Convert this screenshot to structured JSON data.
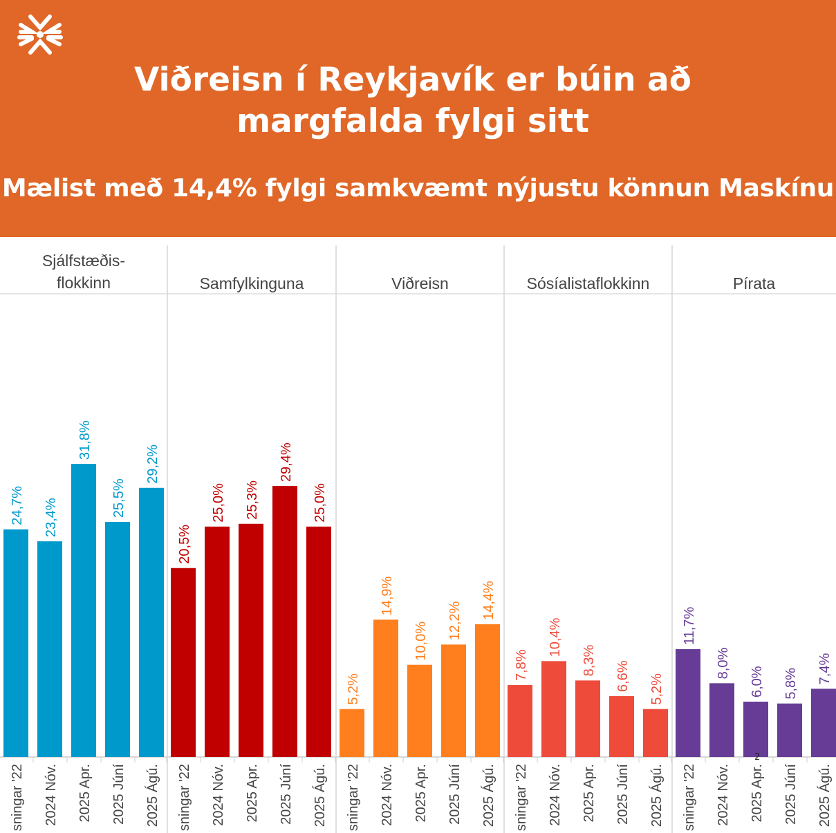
{
  "header": {
    "title_line1": "Viðreisn í Reykjavík er búin að",
    "title_line2": "margfalda fylgi sitt",
    "subtitle": "Mælist með 14,4% fylgi samkvæmt nýjustu könnun Maskínu",
    "logo_icon": "snowflake-logo-icon"
  },
  "page_marker": "2",
  "chart_data": {
    "type": "bar",
    "ylim": [
      0,
      33
    ],
    "categories": [
      "sningar '22",
      "2024 Nóv.",
      "2025 Apr.",
      "2025 Júní",
      "2025 Ágú."
    ],
    "series": [
      {
        "name": "Sjálfstæðis-\nflokkinn",
        "name_lines": [
          "Sjálfstæðis-",
          "flokkinn"
        ],
        "color": "#0099CC",
        "values": [
          24.7,
          23.4,
          31.8,
          25.5,
          29.2
        ],
        "labels": [
          "24,7%",
          "23,4%",
          "31,8%",
          "25,5%",
          "29,2%"
        ]
      },
      {
        "name": "Samfylkinguna",
        "name_lines": [
          "Samfylkinguna"
        ],
        "color": "#C00000",
        "values": [
          20.5,
          25.0,
          25.3,
          29.4,
          25.0
        ],
        "labels": [
          "20,5%",
          "25,0%",
          "25,3%",
          "29,4%",
          "25,0%"
        ]
      },
      {
        "name": "Viðreisn",
        "name_lines": [
          "Viðreisn"
        ],
        "color": "#FF7F1E",
        "values": [
          5.2,
          14.9,
          10.0,
          12.2,
          14.4
        ],
        "labels": [
          "5,2%",
          "14,9%",
          "10,0%",
          "12,2%",
          "14,4%"
        ]
      },
      {
        "name": "Sósíalistaflokkinn",
        "name_lines": [
          "Sósíalistaflokkinn"
        ],
        "color": "#EE4B3B",
        "values": [
          7.8,
          10.4,
          8.3,
          6.6,
          5.2
        ],
        "labels": [
          "7,8%",
          "10,4%",
          "8,3%",
          "6,6%",
          "5,2%"
        ]
      },
      {
        "name": "Pírata",
        "name_lines": [
          "Pírata"
        ],
        "color": "#663C96",
        "values": [
          11.7,
          8.0,
          6.0,
          5.8,
          7.4
        ],
        "labels": [
          "11,7%",
          "8,0%",
          "6,0%",
          "5,8%",
          "7,4%"
        ]
      }
    ]
  }
}
